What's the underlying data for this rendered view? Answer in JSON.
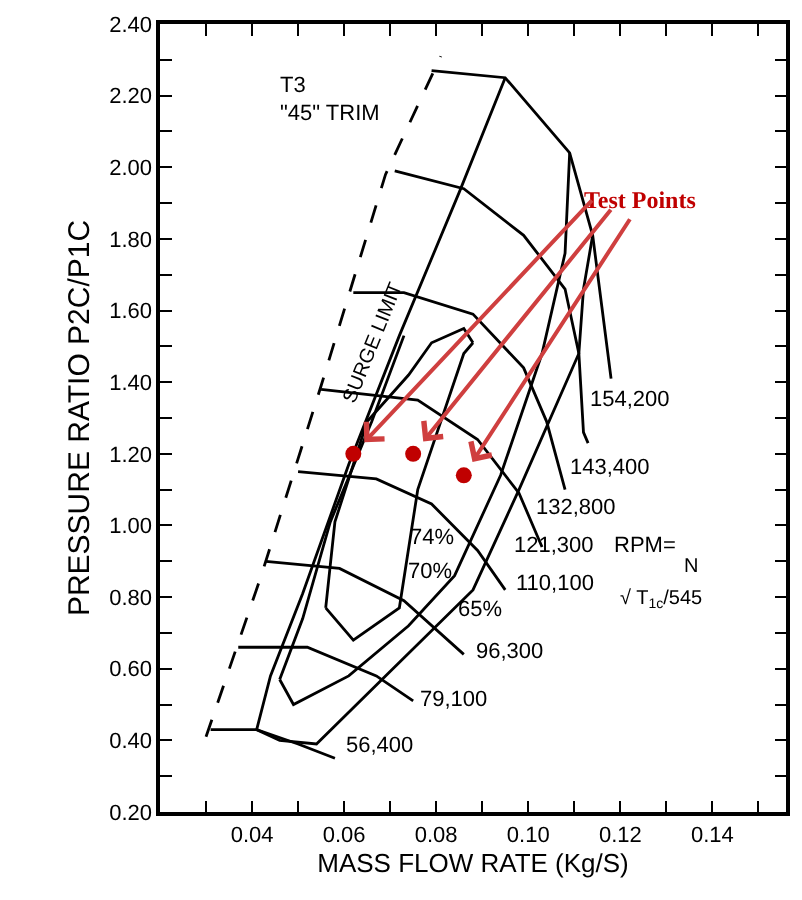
{
  "chart_data": {
    "type": "line",
    "xlabel": "MASS FLOW RATE (Kg/S)",
    "ylabel": "PRESSURE RATIO P2C/P1C",
    "xlim": [
      0.02,
      0.156
    ],
    "ylim": [
      0.2,
      2.4
    ],
    "xticks": [
      {
        "value": 0.03,
        "label": null
      },
      {
        "value": 0.04,
        "label": "0.04"
      },
      {
        "value": 0.05,
        "label": null
      },
      {
        "value": 0.06,
        "label": "0.06"
      },
      {
        "value": 0.07,
        "label": null
      },
      {
        "value": 0.08,
        "label": "0.08"
      },
      {
        "value": 0.09,
        "label": null
      },
      {
        "value": 0.1,
        "label": "0.10"
      },
      {
        "value": 0.11,
        "label": null
      },
      {
        "value": 0.12,
        "label": "0.12"
      },
      {
        "value": 0.13,
        "label": null
      },
      {
        "value": 0.14,
        "label": "0.14"
      },
      {
        "value": 0.15,
        "label": null
      }
    ],
    "yticks": [
      {
        "value": 0.2,
        "label": "0.20"
      },
      {
        "value": 0.3,
        "label": null
      },
      {
        "value": 0.4,
        "label": "0.40"
      },
      {
        "value": 0.5,
        "label": null
      },
      {
        "value": 0.6,
        "label": "0.60"
      },
      {
        "value": 0.7,
        "label": null
      },
      {
        "value": 0.8,
        "label": "0.80"
      },
      {
        "value": 0.9,
        "label": null
      },
      {
        "value": 1.0,
        "label": "1.00"
      },
      {
        "value": 1.1,
        "label": null
      },
      {
        "value": 1.2,
        "label": "1.20"
      },
      {
        "value": 1.3,
        "label": null
      },
      {
        "value": 1.4,
        "label": "1.40"
      },
      {
        "value": 1.5,
        "label": null
      },
      {
        "value": 1.6,
        "label": "1.60"
      },
      {
        "value": 1.7,
        "label": null
      },
      {
        "value": 1.8,
        "label": "1.80"
      },
      {
        "value": 1.9,
        "label": null
      },
      {
        "value": 2.0,
        "label": "2.00"
      },
      {
        "value": 2.1,
        "label": null
      },
      {
        "value": 2.2,
        "label": "2.20"
      },
      {
        "value": 2.3,
        "label": null
      },
      {
        "value": 2.4,
        "label": "2.40"
      }
    ],
    "series": [
      {
        "color": "#000000",
        "line_style": "dashed",
        "x": [
          0.03,
          0.042,
          0.055,
          0.069,
          0.081
        ],
        "values": [
          0.41,
          0.86,
          1.39,
          1.98,
          2.31
        ]
      },
      {
        "color": "#000000",
        "x": [
          0.031,
          0.041,
          0.05,
          0.058
        ],
        "values": [
          0.43,
          0.43,
          0.39,
          0.35
        ]
      },
      {
        "color": "#000000",
        "x": [
          0.037,
          0.052,
          0.067,
          0.075
        ],
        "values": [
          0.66,
          0.66,
          0.58,
          0.51
        ]
      },
      {
        "color": "#000000",
        "x": [
          0.043,
          0.059,
          0.073,
          0.086
        ],
        "values": [
          0.9,
          0.88,
          0.79,
          0.64
        ]
      },
      {
        "color": "#000000",
        "x": [
          0.05,
          0.067,
          0.079,
          0.089,
          0.095
        ],
        "values": [
          1.15,
          1.13,
          1.06,
          0.93,
          0.82
        ]
      },
      {
        "color": "#000000",
        "x": [
          0.055,
          0.076,
          0.089,
          0.098,
          0.103
        ],
        "values": [
          1.38,
          1.35,
          1.24,
          1.09,
          0.94
        ]
      },
      {
        "color": "#000000",
        "x": [
          0.062,
          0.073,
          0.088,
          0.099,
          0.104,
          0.108
        ],
        "values": [
          1.65,
          1.65,
          1.59,
          1.44,
          1.29,
          1.1
        ]
      },
      {
        "color": "#000000",
        "x": [
          0.071,
          0.086,
          0.099,
          0.108,
          0.111,
          0.112,
          0.113
        ],
        "values": [
          1.99,
          1.94,
          1.81,
          1.66,
          1.48,
          1.26,
          1.23
        ]
      },
      {
        "color": "#000000",
        "x": [
          0.079,
          0.095,
          0.109,
          0.114,
          0.116,
          0.118
        ],
        "values": [
          2.27,
          2.25,
          2.04,
          1.81,
          1.61,
          1.41
        ]
      },
      {
        "color": "#000000",
        "x": [
          0.056,
          0.058,
          0.065,
          0.074,
          0.079,
          0.086,
          0.088
        ],
        "values": [
          0.77,
          1.01,
          1.29,
          1.42,
          1.51,
          1.55,
          1.51
        ]
      },
      {
        "color": "#000000",
        "x": [
          0.056,
          0.062,
          0.072,
          0.076,
          0.086,
          0.088
        ],
        "values": [
          0.77,
          0.68,
          0.77,
          1.1,
          1.48,
          1.51
        ]
      },
      {
        "color": "#000000",
        "x": [
          0.046,
          0.051,
          0.057,
          0.066,
          0.073
        ],
        "values": [
          0.57,
          0.74,
          1.01,
          1.29,
          1.53
        ]
      },
      {
        "color": "#000000",
        "x": [
          0.046,
          0.049,
          0.061,
          0.074,
          0.084,
          0.094,
          0.103,
          0.108,
          0.109
        ],
        "values": [
          0.57,
          0.5,
          0.58,
          0.72,
          0.86,
          1.14,
          1.48,
          1.76,
          2.04
        ]
      },
      {
        "color": "#000000",
        "x": [
          0.041,
          0.044,
          0.051,
          0.061,
          0.072,
          0.085,
          0.095
        ],
        "values": [
          0.43,
          0.58,
          0.81,
          1.17,
          1.53,
          1.93,
          2.25
        ]
      },
      {
        "color": "#000000",
        "x": [
          0.041,
          0.046,
          0.054,
          0.069,
          0.088,
          0.098,
          0.111,
          0.112,
          0.114
        ],
        "values": [
          0.43,
          0.4,
          0.39,
          0.58,
          0.82,
          1.1,
          1.48,
          1.66,
          1.81
        ]
      },
      {
        "type": "scatter",
        "marker": "circle",
        "color": "#c00000",
        "x": [
          0.062,
          0.075,
          0.086
        ],
        "values": [
          1.2,
          1.2,
          1.14
        ]
      }
    ],
    "annotations": [
      "56,400",
      "79,100",
      "96,300",
      "110,100",
      "121,300",
      "132,800",
      "143,400",
      "154,200",
      "74%",
      "70%",
      "65%",
      "RPM=",
      "N",
      "√ T$_{1c}$/545",
      "T3",
      "\"45\" TRIM",
      "SURGE LIMIT",
      "Test Points"
    ]
  }
}
